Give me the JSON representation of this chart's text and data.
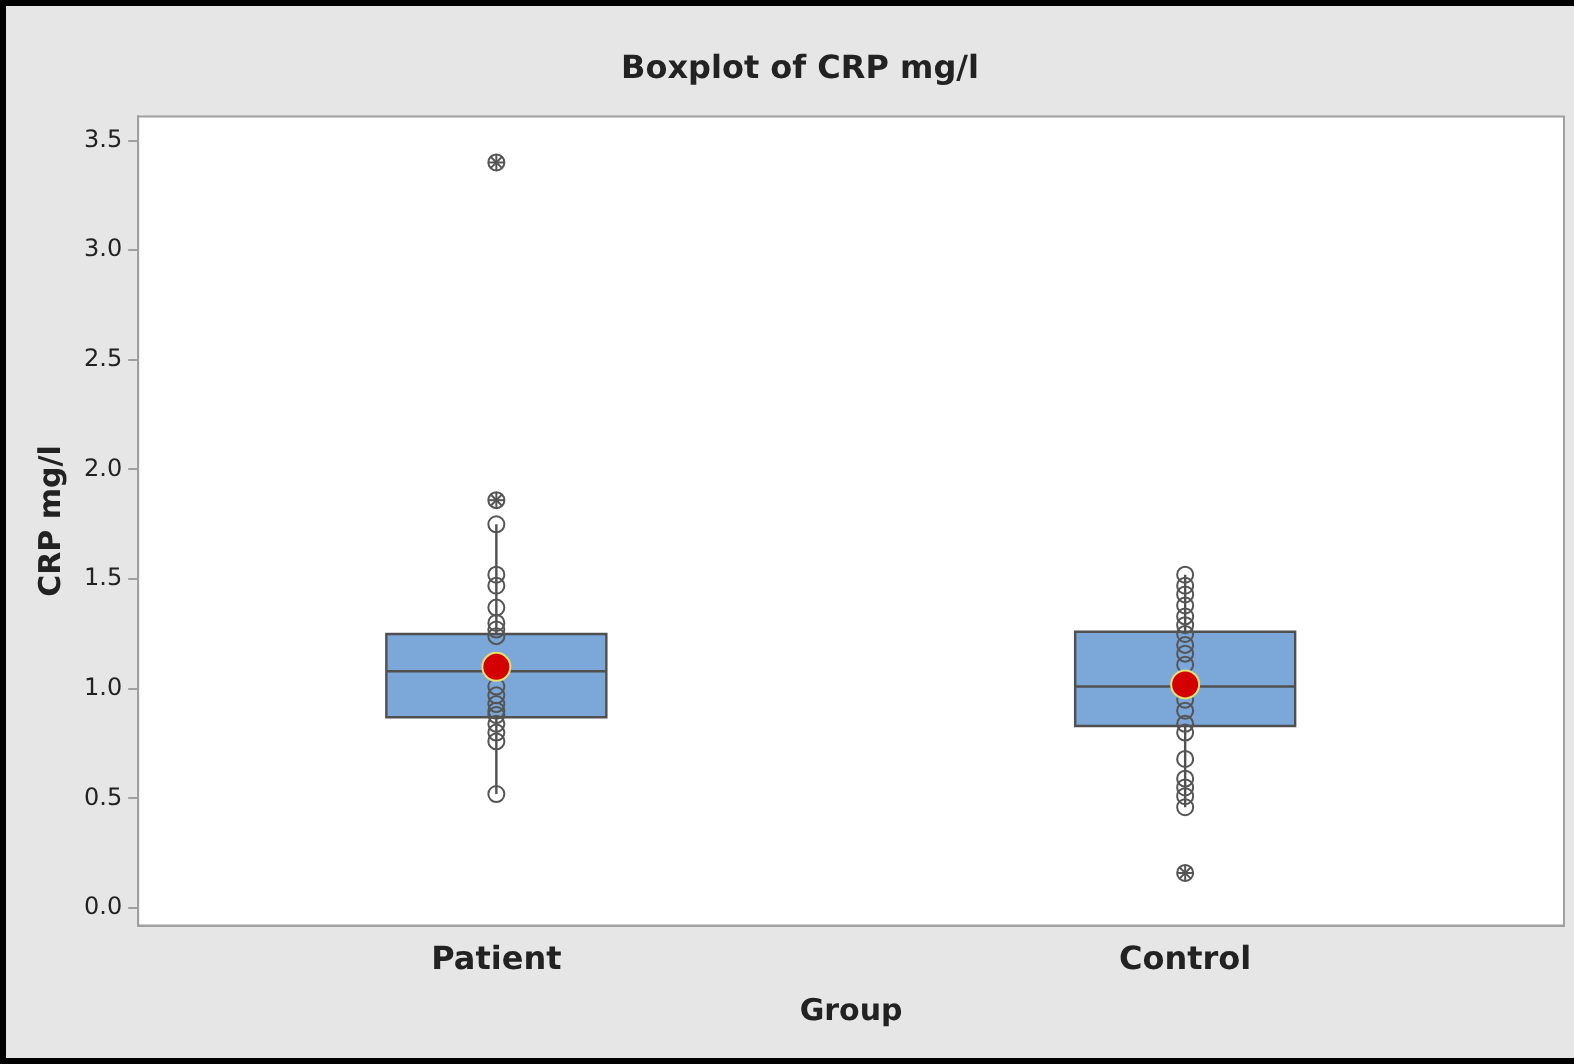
{
  "chart_data": {
    "type": "box",
    "title": "Boxplot of CRP mg/l",
    "xlabel": "Group",
    "ylabel": "CRP mg/l",
    "categories": [
      "Patient",
      "Control"
    ],
    "color": "#7ba7d9",
    "boxes": [
      {
        "low": 0.52,
        "q1": 0.87,
        "median": 1.08,
        "q3": 1.25,
        "high": 1.75,
        "mean": 1.1,
        "outliers": [
          3.4,
          1.86
        ]
      },
      {
        "low": 0.46,
        "q1": 0.83,
        "median": 1.01,
        "q3": 1.26,
        "high": 1.52,
        "mean": 1.02,
        "outliers": [
          0.16
        ]
      }
    ],
    "series": [
      {
        "type": "scatter",
        "color": "#555555",
        "x": [
          "Patient",
          "Patient",
          "Patient",
          "Patient",
          "Patient",
          "Patient",
          "Patient",
          "Patient",
          "Patient",
          "Patient",
          "Patient",
          "Patient",
          "Patient",
          "Patient",
          "Patient",
          "Patient",
          "Patient"
        ],
        "values": [
          1.75,
          1.52,
          1.47,
          1.37,
          1.3,
          1.27,
          1.24,
          null,
          1.01,
          0.97,
          0.93,
          0.9,
          0.88,
          0.84,
          0.8,
          0.76,
          0.52
        ]
      },
      {
        "type": "scatter",
        "color": "#555555",
        "x": [
          "Control",
          "Control",
          "Control",
          "Control",
          "Control",
          "Control",
          "Control",
          "Control",
          "Control",
          "Control",
          "Control",
          "Control",
          "Control",
          "Control",
          "Control",
          "Control",
          "Control",
          "Control",
          "Control"
        ],
        "values": [
          1.52,
          1.47,
          1.43,
          1.38,
          1.33,
          1.29,
          1.25,
          1.2,
          1.16,
          1.11,
          0.95,
          0.9,
          0.84,
          0.8,
          0.68,
          0.59,
          0.55,
          0.51,
          0.46
        ]
      }
    ],
    "marker": "circle",
    "ylim": [
      -0.08,
      3.61
    ],
    "yticks": [
      {
        "value": 0,
        "label": "0.0"
      },
      {
        "value": 0.5,
        "label": "0.5"
      },
      {
        "value": 1,
        "label": "1.0"
      },
      {
        "value": 1.5,
        "label": "1.5"
      },
      {
        "value": 2,
        "label": "2.0"
      },
      {
        "value": 2.5,
        "label": "2.5"
      },
      {
        "value": 3,
        "label": "3.0"
      },
      {
        "value": 3.5,
        "label": "3.5"
      }
    ],
    "grid": false,
    "legend": false
  }
}
